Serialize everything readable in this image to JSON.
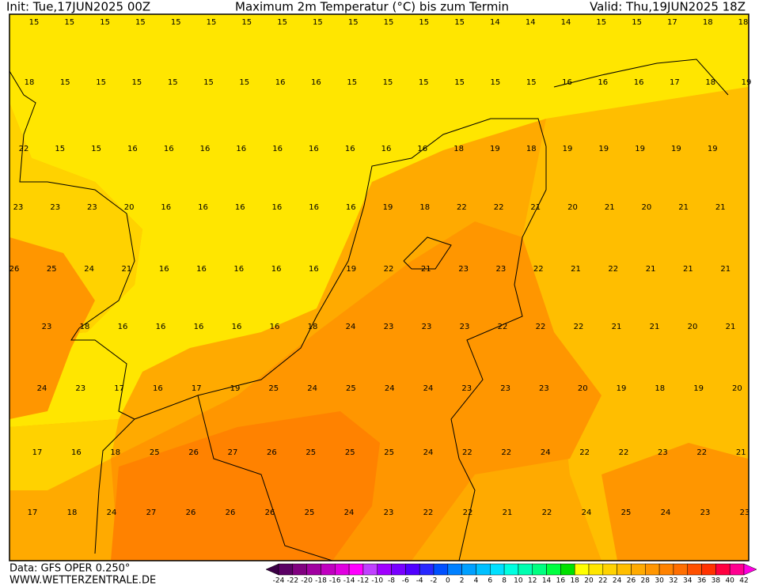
{
  "header": {
    "init": "Init: Tue,17JUN2025 00Z",
    "title": "Maximum 2m Temperatur (°C) bis zum Termin",
    "valid": "Valid: Thu,19JUN2025 18Z"
  },
  "map": {
    "rows": [
      [
        15,
        15,
        15,
        15,
        15,
        15,
        15,
        15,
        15,
        15,
        15,
        15,
        15,
        14,
        14,
        14,
        15,
        15,
        17,
        18,
        18
      ],
      [
        18,
        15,
        15,
        15,
        15,
        15,
        15,
        16,
        16,
        15,
        15,
        15,
        15,
        15,
        15,
        16,
        16,
        16,
        17,
        18,
        19
      ],
      [
        22,
        15,
        15,
        16,
        16,
        16,
        16,
        16,
        16,
        16,
        16,
        16,
        18,
        19,
        18,
        19,
        19,
        19,
        19,
        19
      ],
      [
        23,
        23,
        23,
        20,
        16,
        16,
        16,
        16,
        16,
        16,
        19,
        18,
        22,
        22,
        21,
        20,
        21,
        20,
        21,
        21
      ],
      [
        26,
        25,
        24,
        21,
        16,
        16,
        16,
        16,
        16,
        19,
        22,
        21,
        23,
        23,
        22,
        21,
        22,
        21,
        21,
        21
      ],
      [
        23,
        18,
        16,
        16,
        16,
        16,
        16,
        18,
        24,
        23,
        23,
        23,
        22,
        22,
        22,
        21,
        21,
        20,
        21
      ],
      [
        24,
        23,
        17,
        16,
        17,
        19,
        25,
        24,
        25,
        24,
        24,
        23,
        23,
        23,
        20,
        19,
        18,
        19,
        20
      ],
      [
        17,
        16,
        18,
        25,
        26,
        27,
        26,
        25,
        25,
        25,
        24,
        22,
        22,
        24,
        22,
        22,
        23,
        22,
        21
      ],
      [
        17,
        18,
        24,
        27,
        26,
        26,
        26,
        25,
        24,
        23,
        22,
        22,
        21,
        22,
        24,
        25,
        24,
        23,
        23
      ]
    ]
  },
  "footer": {
    "source": "Data: GFS OPER 0.250°",
    "site": "WWW.WETTERZENTRALE.DE"
  },
  "colorbar": {
    "ticks": [
      -24,
      -22,
      -20,
      -18,
      -16,
      -14,
      -12,
      -10,
      -8,
      -6,
      -4,
      -2,
      0,
      2,
      4,
      6,
      8,
      10,
      12,
      14,
      16,
      18,
      20,
      22,
      24,
      26,
      28,
      30,
      32,
      34,
      36,
      38,
      40,
      42
    ],
    "colors": [
      "#3c0046",
      "#5a0064",
      "#800080",
      "#a000a0",
      "#c000c0",
      "#e000e0",
      "#ff00ff",
      "#c040ff",
      "#a000ff",
      "#7800ff",
      "#5000ff",
      "#2828ff",
      "#0050ff",
      "#0080ff",
      "#00a0ff",
      "#00c0ff",
      "#00e0ff",
      "#00ffe0",
      "#00ffb0",
      "#00ff80",
      "#00ff40",
      "#00e000",
      "#ffff00",
      "#ffe600",
      "#ffd200",
      "#ffbe00",
      "#ffaa00",
      "#ff9600",
      "#ff8200",
      "#ff6e00",
      "#ff5000",
      "#ff3200",
      "#ff0040",
      "#ff0090",
      "#ff00e0"
    ]
  }
}
